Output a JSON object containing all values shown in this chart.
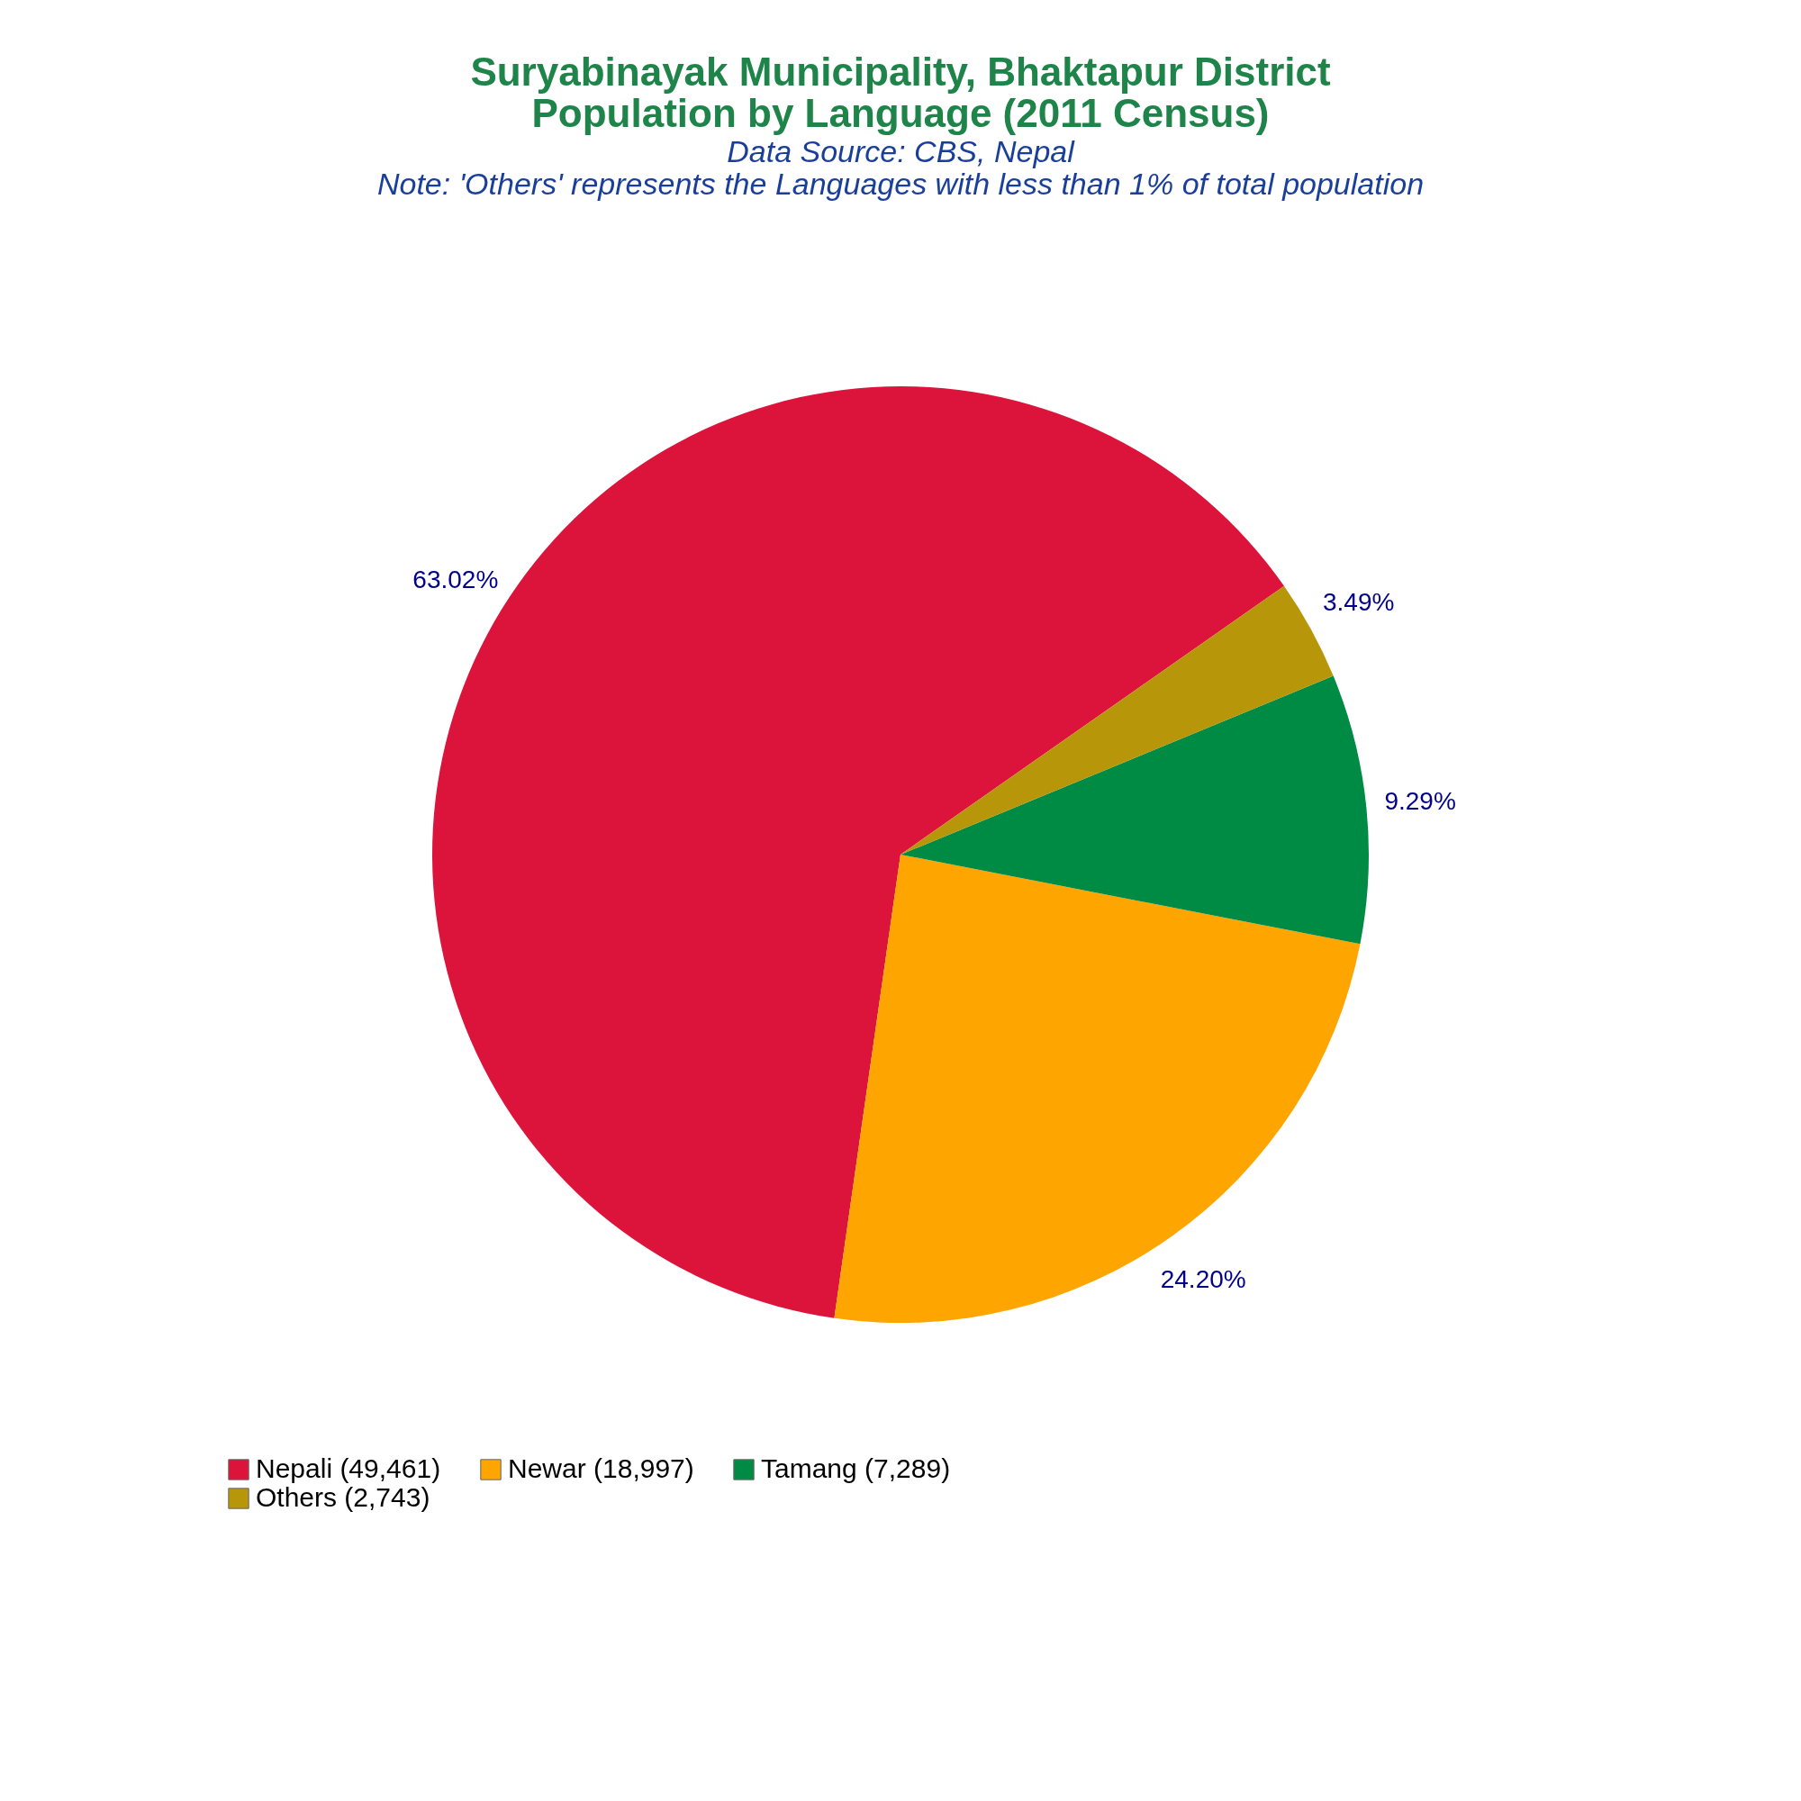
{
  "chart_data": {
    "type": "pie",
    "title": [
      "Suryabinayak Municipality, Bhaktapur District",
      "Population by Language (2011 Census)"
    ],
    "subtitle": "Data Source: CBS, Nepal",
    "annotations": [
      "Note: 'Others' represents the Languages with less than 1% of total population"
    ],
    "categories": [
      "Nepali (49,461)",
      "Newar (18,997)",
      "Tamang (7,289)",
      "Others (2,743)"
    ],
    "values": [
      63.02,
      24.2,
      9.29,
      3.49
    ],
    "colors": [
      "#dc143c",
      "#ffa500",
      "#008b45",
      "#b8960a"
    ],
    "value_labels": [
      "63.02%",
      "24.20%",
      "9.29%",
      "3.49%"
    ],
    "legend": "bottom"
  }
}
